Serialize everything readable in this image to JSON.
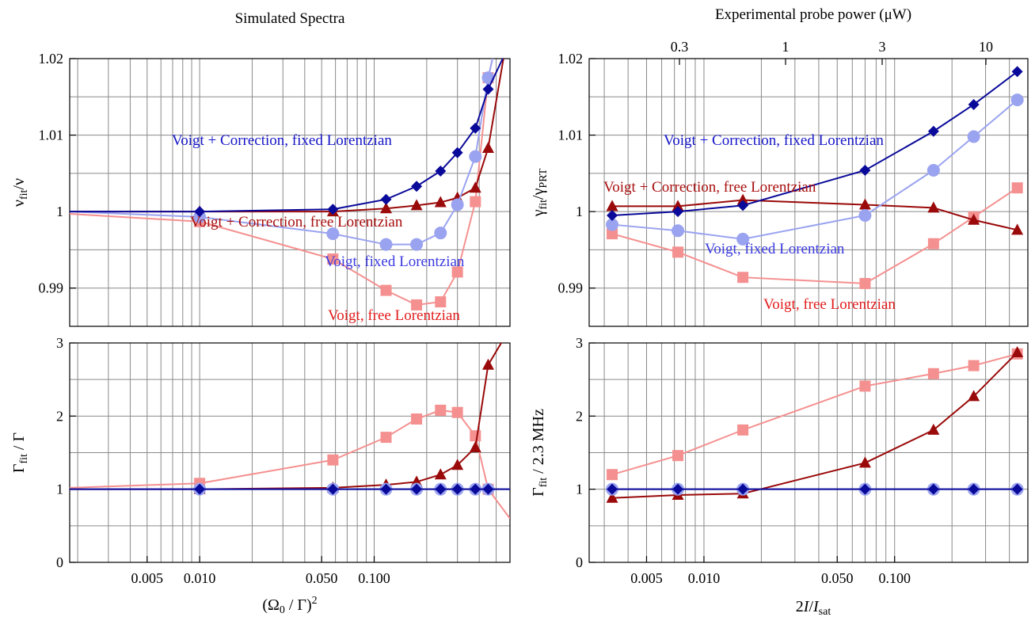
{
  "figure": {
    "left_title": "Simulated Spectra",
    "right_top_axis_label": "Experimental probe power (μW)",
    "left_xlabel": "(Ω₀ / Γ)²",
    "right_xlabel": "2I/I_sat"
  },
  "colors": {
    "voigt_corr_fixed": "#0a0a9a",
    "voigt_fixed": "#9aa3f0",
    "voigt_corr_free": "#9a0a0a",
    "voigt_free": "#f59090",
    "grid": "#8a8a8a"
  },
  "chart_data": [
    {
      "id": "left_top",
      "type": "line",
      "xscale": "log",
      "xlim": [
        0.0018,
        0.6
      ],
      "ylim": [
        0.985,
        1.02
      ],
      "ylabel": "ν_fit/ν",
      "yticks": [
        "0.99",
        "1",
        "1.01",
        "1.02"
      ],
      "yticks_values": [
        0.99,
        1.0,
        1.01,
        1.02
      ],
      "x": [
        0.0018,
        0.01,
        0.058,
        0.117,
        0.175,
        0.24,
        0.3,
        0.38,
        0.45,
        0.6
      ],
      "series": [
        {
          "key": "voigt_corr_fixed",
          "marker": "diamond",
          "values": [
            1.0,
            1.0,
            1.0003,
            1.0016,
            1.0033,
            1.0053,
            1.0077,
            1.0109,
            1.016,
            1.022
          ]
        },
        {
          "key": "voigt_fixed",
          "marker": "circle",
          "values": [
            1.0,
            0.9993,
            0.9971,
            0.9957,
            0.9957,
            0.9972,
            1.0009,
            1.0072,
            1.0175,
            1.03
          ]
        },
        {
          "key": "voigt_corr_free",
          "marker": "triangle",
          "values": [
            1.0,
            1.0,
            1.0,
            1.0004,
            1.0008,
            1.0012,
            1.0018,
            1.0031,
            1.0083,
            1.025
          ]
        },
        {
          "key": "voigt_free",
          "marker": "square",
          "values": [
            0.9997,
            0.9987,
            0.9938,
            0.9897,
            0.9878,
            0.9882,
            0.9921,
            1.0013,
            1.0175,
            1.03
          ]
        }
      ],
      "annotations": [
        {
          "key": "voigt_corr_fixed",
          "text": "Voigt + Correction, fixed Lorentzian"
        },
        {
          "key": "voigt_corr_free",
          "text": "Voigt + Correction, free Lorentzian"
        },
        {
          "key": "voigt_fixed",
          "text": "Voigt, fixed Lorentzian"
        },
        {
          "key": "voigt_free",
          "text": "Voigt, free Lorentzian"
        }
      ]
    },
    {
      "id": "left_bottom",
      "type": "line",
      "xscale": "log",
      "xlim": [
        0.0018,
        0.6
      ],
      "ylim": [
        0,
        3
      ],
      "ylabel": "Γ_fit / Γ",
      "xlabel": "(Ω₀ / Γ)²",
      "xticks": [
        "0.005",
        "0.010",
        "0.050",
        "0.100"
      ],
      "xticks_values": [
        0.005,
        0.01,
        0.05,
        0.1
      ],
      "yticks": [
        "0",
        "1",
        "2",
        "3"
      ],
      "yticks_values": [
        0,
        1,
        2,
        3
      ],
      "x": [
        0.0018,
        0.01,
        0.058,
        0.117,
        0.175,
        0.24,
        0.3,
        0.38,
        0.45,
        0.6
      ],
      "series": [
        {
          "key": "voigt_corr_fixed",
          "marker": "diamond",
          "values": [
            1.0,
            1.0,
            1.0,
            1.0,
            1.0,
            1.0,
            1.0,
            1.0,
            1.0,
            1.0
          ]
        },
        {
          "key": "voigt_fixed",
          "marker": "circle",
          "values": [
            1.0,
            1.0,
            1.0,
            1.0,
            1.0,
            1.0,
            1.0,
            1.0,
            1.0,
            1.0
          ]
        },
        {
          "key": "voigt_corr_free",
          "marker": "triangle",
          "values": [
            1.0,
            1.0,
            1.02,
            1.06,
            1.1,
            1.2,
            1.33,
            1.57,
            2.7,
            3.2
          ]
        },
        {
          "key": "voigt_free",
          "marker": "square",
          "values": [
            1.02,
            1.08,
            1.4,
            1.71,
            1.96,
            2.08,
            2.05,
            1.73,
            1.0,
            0.6
          ]
        }
      ]
    },
    {
      "id": "right_top",
      "type": "line",
      "xscale": "log",
      "xlim": [
        0.0025,
        0.5
      ],
      "ylim": [
        0.985,
        1.02
      ],
      "ylabel": "γ_fit/γ_PRT",
      "yticks": [
        "0.99",
        "1",
        "1.01",
        "1.02"
      ],
      "yticks_values": [
        0.99,
        1.0,
        1.01,
        1.02
      ],
      "top_axis_label": "Experimental probe power (μW)",
      "top_ticks": [
        "0.3",
        "1",
        "3",
        "10"
      ],
      "top_ticks_values": [
        0.3,
        1,
        3,
        10
      ],
      "x": [
        0.0033,
        0.0073,
        0.016,
        0.07,
        0.16,
        0.26,
        0.44
      ],
      "series": [
        {
          "key": "voigt_corr_fixed",
          "marker": "diamond",
          "values": [
            0.9995,
            1.0,
            1.0008,
            1.0054,
            1.0105,
            1.014,
            1.0183
          ]
        },
        {
          "key": "voigt_fixed",
          "marker": "circle",
          "values": [
            0.9983,
            0.9975,
            0.9964,
            0.9995,
            1.0054,
            1.0098,
            1.0146
          ]
        },
        {
          "key": "voigt_corr_free",
          "marker": "triangle",
          "values": [
            1.0007,
            1.0007,
            1.0015,
            1.0009,
            1.0005,
            0.9989,
            0.9976
          ]
        },
        {
          "key": "voigt_free",
          "marker": "square",
          "values": [
            0.9971,
            0.9947,
            0.9914,
            0.9906,
            0.9958,
            0.9993,
            1.0031
          ]
        }
      ],
      "annotations": [
        {
          "key": "voigt_corr_fixed",
          "text": "Voigt + Correction, fixed Lorentzian"
        },
        {
          "key": "voigt_corr_free",
          "text": "Voigt + Correction, free Lorentzian"
        },
        {
          "key": "voigt_fixed",
          "text": "Voigt, fixed Lorentzian"
        },
        {
          "key": "voigt_free",
          "text": "Voigt, free Lorentzian"
        }
      ]
    },
    {
      "id": "right_bottom",
      "type": "line",
      "xscale": "log",
      "xlim": [
        0.0025,
        0.5
      ],
      "ylim": [
        0,
        3
      ],
      "ylabel": "Γ_fit / 2.3 MHz",
      "xlabel": "2I/I_sat",
      "xticks": [
        "0.005",
        "0.010",
        "0.050",
        "0.100"
      ],
      "xticks_values": [
        0.005,
        0.01,
        0.05,
        0.1
      ],
      "yticks": [
        "0",
        "1",
        "2",
        "3"
      ],
      "yticks_values": [
        0,
        1,
        2,
        3
      ],
      "x": [
        0.0033,
        0.0073,
        0.016,
        0.07,
        0.16,
        0.26,
        0.44
      ],
      "series": [
        {
          "key": "voigt_corr_fixed",
          "marker": "diamond",
          "values": [
            1.0,
            1.0,
            1.0,
            1.0,
            1.0,
            1.0,
            1.0
          ]
        },
        {
          "key": "voigt_fixed",
          "marker": "circle",
          "values": [
            1.0,
            1.0,
            1.0,
            1.0,
            1.0,
            1.0,
            1.0
          ]
        },
        {
          "key": "voigt_corr_free",
          "marker": "triangle",
          "values": [
            0.88,
            0.92,
            0.94,
            1.36,
            1.81,
            2.27,
            2.87
          ]
        },
        {
          "key": "voigt_free",
          "marker": "square",
          "values": [
            1.2,
            1.46,
            1.81,
            2.41,
            2.58,
            2.69,
            2.85
          ]
        }
      ]
    }
  ]
}
